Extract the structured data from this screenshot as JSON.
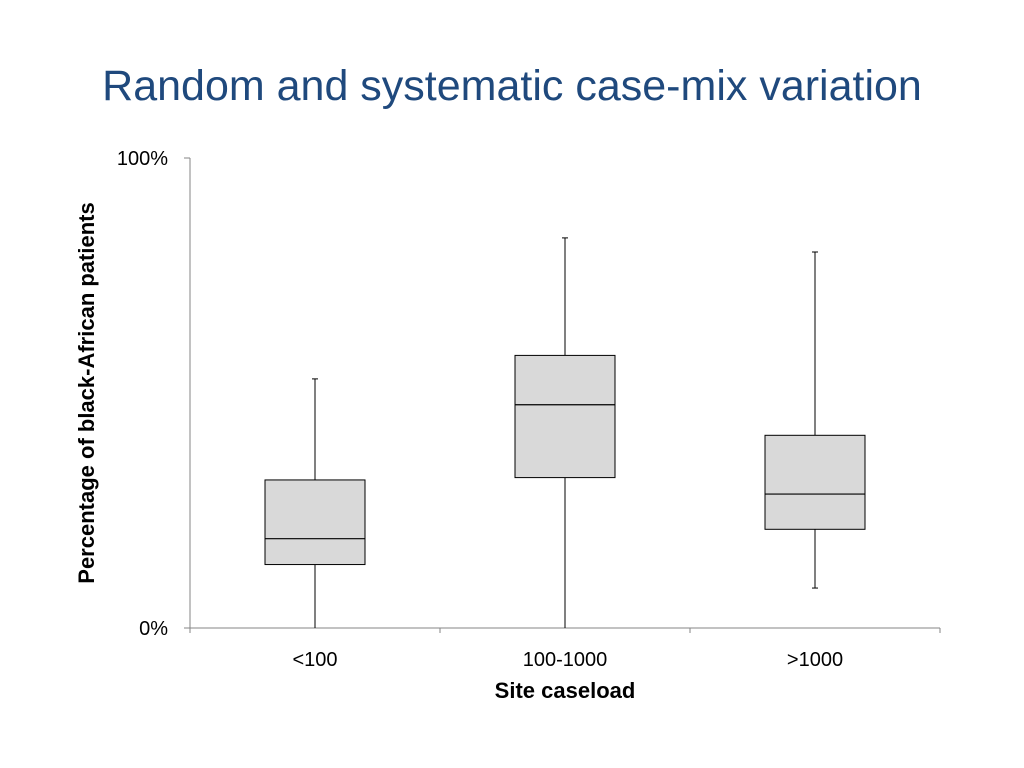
{
  "slide": {
    "title": "Random and systematic case-mix variation"
  },
  "chart_data": {
    "type": "box",
    "xlabel": "Site caseload",
    "ylabel": "Percentage of black-African patients",
    "ylim": [
      0,
      100
    ],
    "y_ticks": [
      {
        "value": 0,
        "label": "0%"
      },
      {
        "value": 100,
        "label": "100%"
      }
    ],
    "grid": false,
    "categories": [
      "<100",
      "100-1000",
      ">1000"
    ],
    "boxes": [
      {
        "category": "<100",
        "min": 0,
        "q1": 13.5,
        "median": 19,
        "q3": 31.5,
        "max": 53
      },
      {
        "category": "100-1000",
        "min": 0,
        "q1": 32,
        "median": 47.5,
        "q3": 58,
        "max": 83
      },
      {
        "category": ">1000",
        "min": 8.5,
        "q1": 21,
        "median": 28.5,
        "q3": 41,
        "max": 80
      }
    ],
    "colors": {
      "box_fill": "#d9d9d9",
      "box_stroke": "#000000",
      "axis": "#868686"
    }
  }
}
